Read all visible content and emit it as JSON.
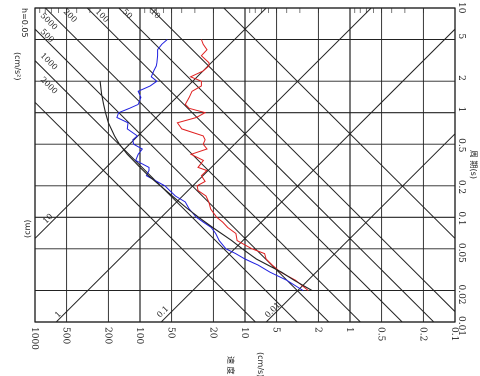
{
  "chart_data": {
    "type": "line",
    "title": "",
    "scale": "tripartite log-log",
    "orientation": "rotated 90 degrees clockwise",
    "xlabel": "周 期(s)",
    "ylabel": "速 度",
    "ylabel_unit": "(cm/s)",
    "displacement_unit": "(cm)",
    "acceleration_unit": "(cm/s²)",
    "xlim": [
      0.01,
      10
    ],
    "ylim": [
      0.1,
      1000
    ],
    "x_ticks": [
      "0.01",
      "0.02",
      "0.05",
      "0.1",
      "0.2",
      "0.5",
      "1",
      "2",
      "5",
      "10"
    ],
    "y_ticks": [
      "0.1",
      "0.2",
      "0.5",
      "1",
      "2",
      "5",
      "10",
      "20",
      "50",
      "100",
      "200",
      "500",
      "1000"
    ],
    "displacement_lines": [
      {
        "value": 0.01,
        "label": "0.01"
      },
      {
        "value": 0.1,
        "label": "0.1"
      },
      {
        "value": 1,
        "label": "1"
      },
      {
        "value": 10,
        "label": "10"
      }
    ],
    "acceleration_lines": [
      {
        "value": 10,
        "label": "10"
      },
      {
        "value": 50,
        "label": "50"
      },
      {
        "value": 100,
        "label": "100"
      },
      {
        "value": 200,
        "label": "200"
      },
      {
        "value": 500,
        "label": "500"
      },
      {
        "value": 1000,
        "label": "1000"
      },
      {
        "value": 2000,
        "label": "2000"
      },
      {
        "value": 5000,
        "label": "5000"
      }
    ],
    "h_label": "h=0.05",
    "series": [
      {
        "color": "#e02020",
        "x": [
          0.02,
          0.025,
          0.03,
          0.035,
          0.04,
          0.045,
          0.05,
          0.06,
          0.07,
          0.08,
          0.09,
          0.1,
          0.12,
          0.14,
          0.16,
          0.18,
          0.2,
          0.22,
          0.25,
          0.28,
          0.3,
          0.35,
          0.4,
          0.45,
          0.5,
          0.55,
          0.6,
          0.7,
          0.8,
          0.9,
          1.0,
          1.1,
          1.2,
          1.4,
          1.6,
          1.8,
          2.0,
          2.2,
          2.5,
          2.8,
          3.0,
          3.5,
          4.0,
          4.5,
          5.0
        ],
        "values": [
          2.5,
          3.3,
          4.6,
          5.5,
          6.3,
          6.5,
          8.6,
          11.9,
          12.2,
          14.6,
          16.3,
          18.6,
          21.2,
          22.1,
          23.5,
          28,
          28.5,
          24,
          26,
          23.1,
          28,
          24.9,
          32.6,
          23,
          25,
          24,
          25,
          40,
          44,
          29,
          24,
          34,
          37,
          34,
          32,
          26,
          26,
          33,
          25,
          22,
          22,
          26,
          23,
          25,
          26
        ]
      },
      {
        "color": "#2020e0",
        "x": [
          0.02,
          0.025,
          0.03,
          0.035,
          0.04,
          0.045,
          0.05,
          0.06,
          0.07,
          0.08,
          0.09,
          0.1,
          0.12,
          0.14,
          0.16,
          0.18,
          0.2,
          0.22,
          0.25,
          0.28,
          0.3,
          0.35,
          0.4,
          0.45,
          0.5,
          0.55,
          0.6,
          0.7,
          0.8,
          0.9,
          1.0,
          1.1,
          1.2,
          1.4,
          1.6,
          1.8,
          2.0,
          2.2,
          2.5,
          2.8,
          3.0,
          3.5,
          4.0,
          4.5,
          5.0
        ],
        "values": [
          2.8,
          4.0,
          5.8,
          7.5,
          10,
          12.3,
          15.2,
          17.6,
          19,
          21,
          25,
          29,
          34,
          37,
          46,
          52,
          58,
          69,
          87,
          82,
          82,
          110,
          104,
          95,
          115,
          117,
          106,
          132,
          130,
          166,
          160,
          126,
          104,
          98,
          104,
          80,
          69,
          78,
          74,
          70,
          69,
          68,
          68,
          62,
          55
        ]
      },
      {
        "color": "#222222",
        "x": [
          0.02,
          0.025,
          0.03,
          0.04,
          0.05,
          0.06,
          0.08,
          0.1,
          0.12,
          0.15,
          0.2,
          0.25,
          0.3,
          0.4,
          0.5,
          0.6,
          0.8,
          1.0,
          1.2,
          1.5,
          2.0
        ],
        "values": [
          2.3,
          3.4,
          4.5,
          7.8,
          10.6,
          13.4,
          20.3,
          27.6,
          35,
          45.7,
          64,
          83,
          100,
          132,
          157,
          175,
          200,
          213,
          222,
          232,
          240
        ]
      }
    ]
  }
}
